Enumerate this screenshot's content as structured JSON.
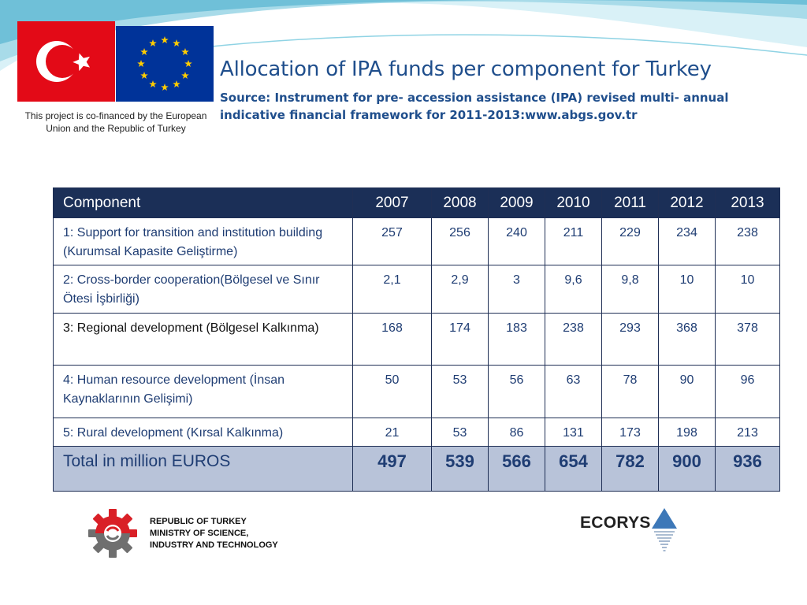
{
  "header": {
    "title": "Allocation of IPA funds per component for Turkey",
    "source_line1": "Source: Instrument for pre- accession assistance (IPA) revised multi- annual",
    "source_line2": "indicative financial framework for 2011-2013:www.abgs.gov.tr"
  },
  "cofinance": {
    "line1": "This project is co-financed by the European",
    "line2": "Union and the Republic of Turkey"
  },
  "table": {
    "header": {
      "component": "Component",
      "years": [
        "2007",
        "2008",
        "2009",
        "2010",
        "2011",
        "2012",
        "2013"
      ]
    },
    "rows": [
      {
        "component": "1: Support for transition and institution building (Kurumsal Kapasite Geliştirme)",
        "values": [
          "257",
          "256",
          "240",
          "211",
          "229",
          "234",
          "238"
        ]
      },
      {
        "component": "2: Cross-border cooperation(Bölgesel ve Sınır Ötesi İşbirliği)",
        "values": [
          "2,1",
          "2,9",
          "3",
          "9,6",
          "9,8",
          "10",
          "10"
        ]
      },
      {
        "component": "3: Regional development (Bölgesel Kalkınma)",
        "values": [
          "168",
          "174",
          "183",
          "238",
          "293",
          "368",
          "378"
        ]
      },
      {
        "component": "4: Human resource development (İnsan Kaynaklarının Gelişimi)",
        "values": [
          "50",
          "53",
          "56",
          "63",
          "78",
          "90",
          "96"
        ]
      },
      {
        "component": "5: Rural development (Kırsal Kalkınma)",
        "values": [
          "21",
          "53",
          "86",
          "131",
          "173",
          "198",
          "213"
        ]
      }
    ],
    "total": {
      "label": "Total in million EUROS",
      "values": [
        "497",
        "539",
        "566",
        "654",
        "782",
        "900",
        "936"
      ]
    }
  },
  "ministry": {
    "line1": "REPUBLIC OF TURKEY",
    "line2": "MINISTRY OF SCIENCE,",
    "line3": "INDUSTRY AND TECHNOLOGY"
  },
  "ecorys": {
    "name": "ECORYS"
  },
  "colors": {
    "table_header_bg": "#1b2f57",
    "total_row_bg": "#b8c3d9",
    "title_blue": "#1f4e8c",
    "flag_red": "#e30a17",
    "eu_blue": "#003399",
    "eu_star": "#ffcc00"
  },
  "icons": [
    "turkey-flag-icon",
    "eu-flag-icon",
    "ministry-gear-logo-icon",
    "ecorys-triangle-logo-icon"
  ]
}
